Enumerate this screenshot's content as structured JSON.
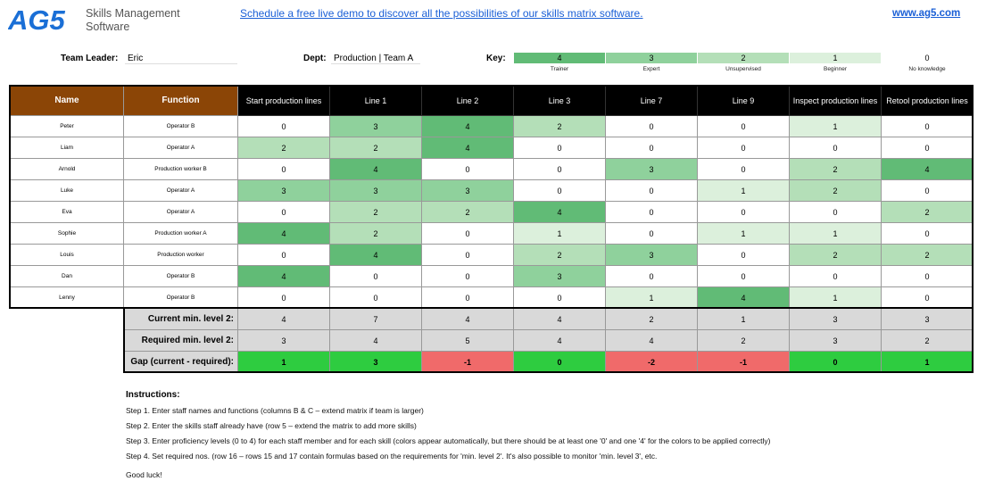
{
  "header": {
    "logo": "AG5",
    "logo_sub_1": "Skills Management",
    "logo_sub_2": "Software",
    "demo_link": "Schedule a free live demo to discover all the possibilities of our skills matrix software.",
    "site_link": "www.ag5.com"
  },
  "meta": {
    "team_leader_label": "Team Leader:",
    "team_leader_value": "Eric",
    "dept_label": "Dept:",
    "dept_value": "Production | Team A",
    "key_label": "Key:"
  },
  "key": [
    {
      "level": "4",
      "desc": "Trainer"
    },
    {
      "level": "3",
      "desc": "Expert"
    },
    {
      "level": "2",
      "desc": "Unsupervised"
    },
    {
      "level": "1",
      "desc": "Beginner"
    },
    {
      "level": "0",
      "desc": "No knowledge"
    }
  ],
  "colors": {
    "level0": "#ffffff",
    "level1": "#dcf0dc",
    "level2": "#b4dfb8",
    "level3": "#8fd19c",
    "level4": "#61bb76",
    "gap_positive": "#2ecc40",
    "gap_negative": "#f06a6a",
    "header_brown": "#8b4506"
  },
  "columns": {
    "name": "Name",
    "function": "Function",
    "skills": [
      "Start production lines",
      "Line 1",
      "Line 2",
      "Line 3",
      "Line 7",
      "Line 9",
      "Inspect production lines",
      "Retool production lines"
    ]
  },
  "rows": [
    {
      "name": "Peter",
      "function": "Operator B",
      "levels": [
        0,
        3,
        4,
        2,
        0,
        0,
        1,
        0
      ]
    },
    {
      "name": "Liam",
      "function": "Operator A",
      "levels": [
        2,
        2,
        4,
        0,
        0,
        0,
        0,
        0
      ]
    },
    {
      "name": "Arnold",
      "function": "Production worker B",
      "levels": [
        0,
        4,
        0,
        0,
        3,
        0,
        2,
        4
      ]
    },
    {
      "name": "Luke",
      "function": "Operator A",
      "levels": [
        3,
        3,
        3,
        0,
        0,
        1,
        2,
        0
      ]
    },
    {
      "name": "Eva",
      "function": "Operator A",
      "levels": [
        0,
        2,
        2,
        4,
        0,
        0,
        0,
        2
      ]
    },
    {
      "name": "Sophie",
      "function": "Production worker A",
      "levels": [
        4,
        2,
        0,
        1,
        0,
        1,
        1,
        0
      ]
    },
    {
      "name": "Louis",
      "function": "Production worker",
      "levels": [
        0,
        4,
        0,
        2,
        3,
        0,
        2,
        2
      ]
    },
    {
      "name": "Dan",
      "function": "Operator B",
      "levels": [
        4,
        0,
        0,
        3,
        0,
        0,
        0,
        0
      ]
    },
    {
      "name": "Lenny",
      "function": "Operator B",
      "levels": [
        0,
        0,
        0,
        0,
        1,
        4,
        1,
        0
      ]
    }
  ],
  "summary": {
    "current_label": "Current min. level 2:",
    "current": [
      4,
      7,
      4,
      4,
      2,
      1,
      3,
      3
    ],
    "required_label": "Required min. level 2:",
    "required": [
      3,
      4,
      5,
      4,
      4,
      2,
      3,
      2
    ],
    "gap_label": "Gap (current - required):",
    "gap": [
      1,
      3,
      -1,
      0,
      -2,
      -1,
      0,
      1
    ]
  },
  "instructions": {
    "title": "Instructions:",
    "steps": [
      "Step 1. Enter staff names and functions (columns B & C – extend matrix if team is larger)",
      "Step 2. Enter the skills staff already have (row 5 – extend the matrix to add more skills)",
      "Step 3. Enter proficiency levels (0 to 4) for each staff member and for each skill (colors appear automatically, but there should be at least one '0' and one '4' for the colors to be applied correctly)",
      "Step 4. Set required nos. (row 16 – rows 15 and 17 contain formulas based on the requirements for 'min. level 2'. It's also possible to monitor 'min. level 3', etc.",
      "Good luck!"
    ]
  }
}
